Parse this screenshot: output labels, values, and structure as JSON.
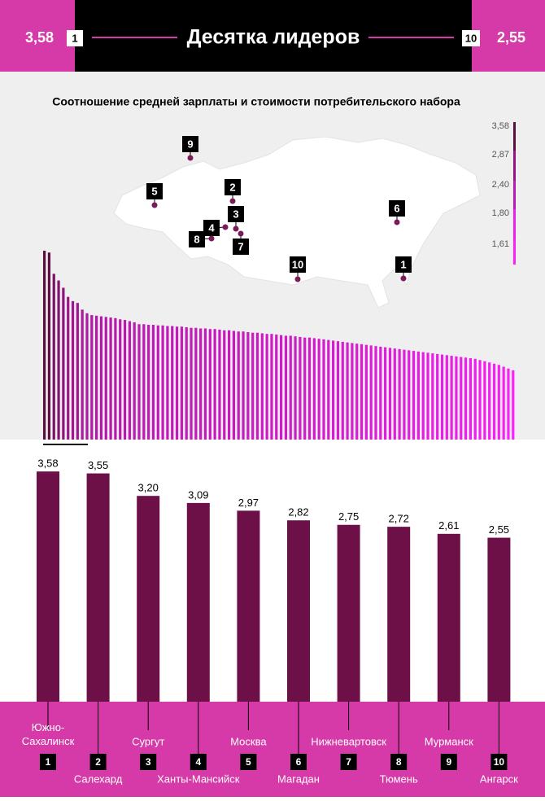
{
  "chart_data": [
    {
      "type": "bar",
      "title": "Соотношение средней зарплаты и стоимости потребительского набора",
      "values": [
        3.58,
        3.55,
        3.2,
        3.09,
        2.97,
        2.82,
        2.75,
        2.72,
        2.61,
        2.55,
        2.52,
        2.51,
        2.5,
        2.49,
        2.48,
        2.47,
        2.45,
        2.44,
        2.42,
        2.4,
        2.37,
        2.37,
        2.36,
        2.36,
        2.35,
        2.35,
        2.34,
        2.34,
        2.33,
        2.33,
        2.32,
        2.31,
        2.31,
        2.3,
        2.3,
        2.29,
        2.29,
        2.28,
        2.27,
        2.27,
        2.26,
        2.25,
        2.25,
        2.24,
        2.23,
        2.23,
        2.22,
        2.21,
        2.21,
        2.2,
        2.19,
        2.18,
        2.18,
        2.17,
        2.16,
        2.15,
        2.15,
        2.14,
        2.13,
        2.12,
        2.11,
        2.1,
        2.09,
        2.08,
        2.07,
        2.06,
        2.05,
        2.04,
        2.03,
        2.02,
        2.01,
        2.0,
        1.99,
        1.98,
        1.97,
        1.96,
        1.95,
        1.94,
        1.93,
        1.92,
        1.91,
        1.9,
        1.89,
        1.88,
        1.87,
        1.86,
        1.85,
        1.84,
        1.83,
        1.82,
        1.81,
        1.8,
        1.78,
        1.76,
        1.74,
        1.72,
        1.7,
        1.67,
        1.64,
        1.61
      ],
      "ylim": [
        0.47,
        3.58
      ],
      "color_scale": [
        "#5a0f40",
        "#ff20ff"
      ],
      "legend_ticks": [
        {
          "value": 3.58,
          "label": "3,58"
        },
        {
          "value": 2.87,
          "label": "2,87"
        },
        {
          "value": 2.4,
          "label": "2,40"
        },
        {
          "value": 1.8,
          "label": "1,80"
        },
        {
          "value": 1.61,
          "label": "1,61"
        }
      ],
      "map_markers": [
        1,
        2,
        3,
        4,
        5,
        6,
        7,
        8,
        9,
        10
      ]
    },
    {
      "type": "bar",
      "title": "Десятка лидеров",
      "ranks": [
        1,
        2,
        3,
        4,
        5,
        6,
        7,
        8,
        9,
        10
      ],
      "categories": [
        "Южно-Сахалинск",
        "Салехард",
        "Сургут",
        "Ханты-Мансийск",
        "Москва",
        "Магадан",
        "Нижневартовск",
        "Тюмень",
        "Мурманск",
        "Ангарск"
      ],
      "values": [
        3.58,
        3.55,
        3.2,
        3.09,
        2.97,
        2.82,
        2.75,
        2.72,
        2.61,
        2.55
      ],
      "value_labels": [
        "3,58",
        "3,55",
        "3,20",
        "3,09",
        "2,97",
        "2,82",
        "2,75",
        "2,72",
        "2,61",
        "2,55"
      ],
      "color": "#6e1048",
      "ylim": [
        0,
        4
      ]
    }
  ]
}
